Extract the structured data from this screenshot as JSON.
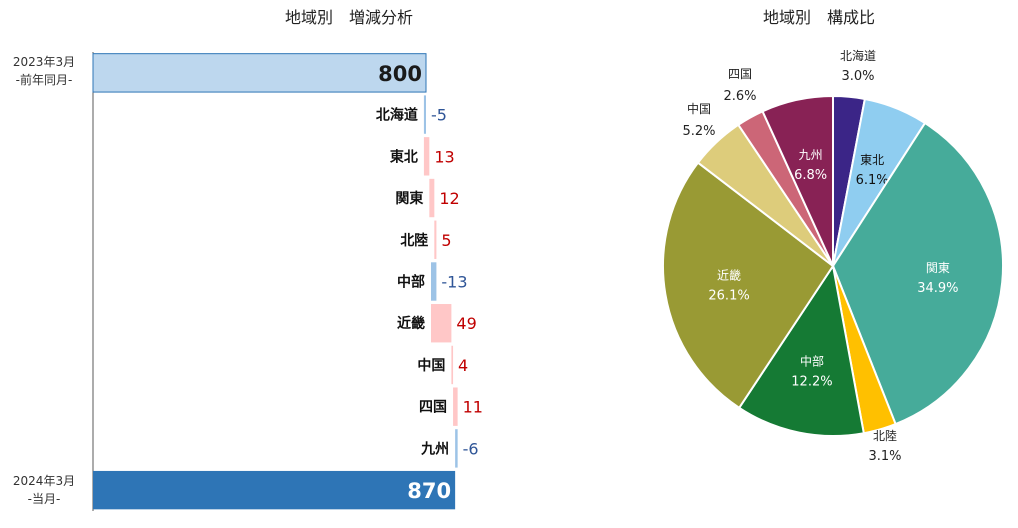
{
  "waterfall": {
    "title": "地域別　増減分析",
    "start": {
      "label_line1": "2023年3月",
      "label_line2": "-前年同月-",
      "value": 800,
      "display": "800"
    },
    "end": {
      "label_line1": "2024年3月",
      "label_line2": "-当月-",
      "value": 870,
      "display": "870"
    },
    "colors": {
      "start": "#bdd7ee",
      "end": "#2e75b6",
      "increase": "#ffc7c7",
      "decrease": "#9dc3e6",
      "pos_text": "#c00000",
      "neg_text": "#2f5597"
    }
  },
  "pie": {
    "title": "地域別　構成比",
    "slices": [
      {
        "name": "北海道",
        "pct": 3.0,
        "display": "3.0%",
        "color": "#3b2587",
        "outside": true
      },
      {
        "name": "東北",
        "pct": 6.1,
        "display": "6.1%",
        "color": "#8fcdf0",
        "outside": false
      },
      {
        "name": "関東",
        "pct": 34.9,
        "display": "34.9%",
        "color": "#46ab9a",
        "outside": false
      },
      {
        "name": "北陸",
        "pct": 3.1,
        "display": "3.1%",
        "color": "#ffc000",
        "outside": true
      },
      {
        "name": "中部",
        "pct": 12.2,
        "display": "12.2%",
        "color": "#157a34",
        "outside": false
      },
      {
        "name": "近畿",
        "pct": 26.1,
        "display": "26.1%",
        "color": "#999a34",
        "outside": false
      },
      {
        "name": "中国",
        "pct": 5.2,
        "display": "5.2%",
        "color": "#ddcc7b",
        "outside": true
      },
      {
        "name": "四国",
        "pct": 2.6,
        "display": "2.6%",
        "color": "#cc6677",
        "outside": true
      },
      {
        "name": "九州",
        "pct": 6.8,
        "display": "6.8%",
        "color": "#882255",
        "outside": false
      }
    ]
  },
  "chart_data": [
    {
      "type": "bar",
      "subtype": "waterfall",
      "title": "地域別　増減分析",
      "categories": [
        "2023年3月 -前年同月-",
        "北海道",
        "東北",
        "関東",
        "北陸",
        "中部",
        "近畿",
        "中国",
        "四国",
        "九州",
        "2024年3月 -当月-"
      ],
      "values": [
        800,
        -5,
        13,
        12,
        5,
        -13,
        49,
        4,
        11,
        -6,
        870
      ],
      "xlabel": "",
      "ylabel": ""
    },
    {
      "type": "pie",
      "title": "地域別　構成比",
      "categories": [
        "北海道",
        "東北",
        "関東",
        "北陸",
        "中部",
        "近畿",
        "中国",
        "四国",
        "九州"
      ],
      "values": [
        3.0,
        6.1,
        34.9,
        3.1,
        12.2,
        26.1,
        5.2,
        2.6,
        6.8
      ]
    }
  ]
}
